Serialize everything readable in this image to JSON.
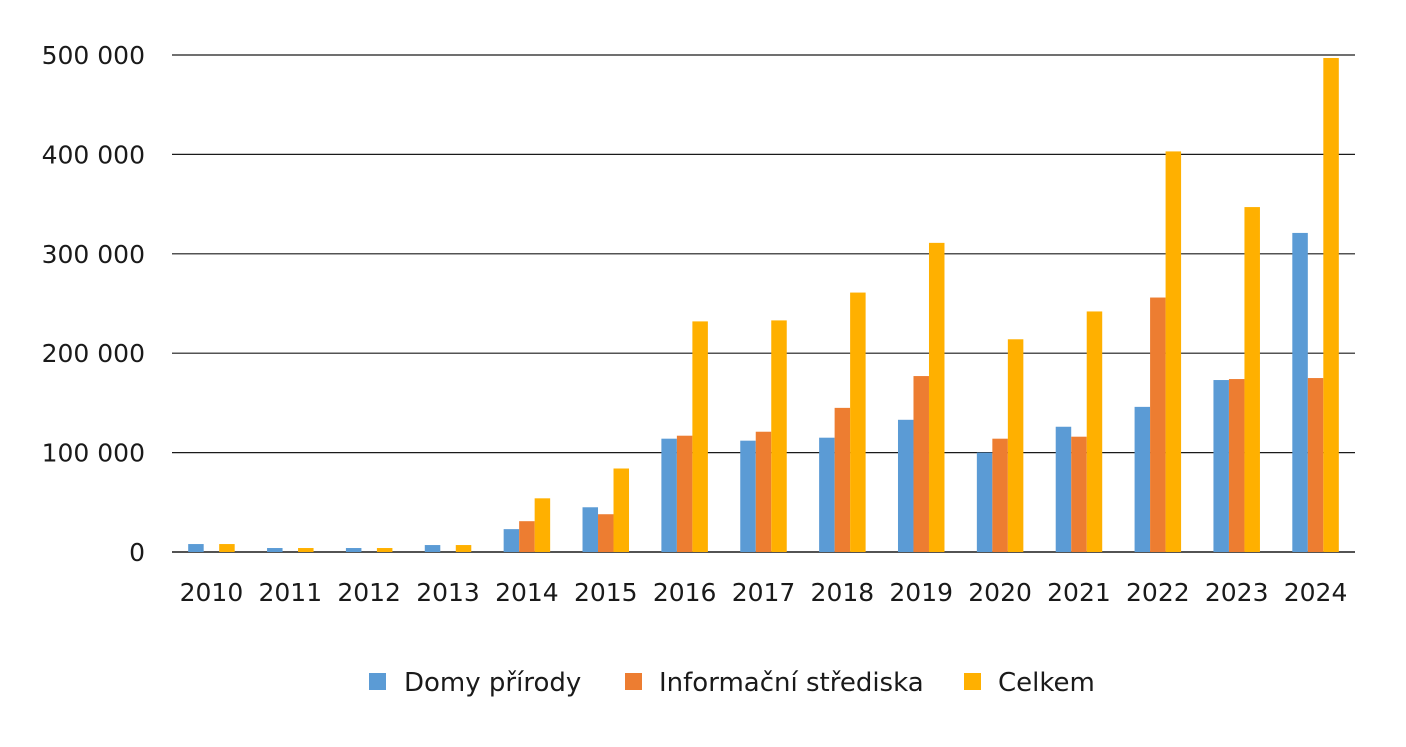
{
  "chart_data": {
    "type": "bar",
    "title": "",
    "xlabel": "",
    "ylabel": "",
    "categories": [
      "2010",
      "2011",
      "2012",
      "2013",
      "2014",
      "2015",
      "2016",
      "2017",
      "2018",
      "2019",
      "2020",
      "2021",
      "2022",
      "2023",
      "2024"
    ],
    "series": [
      {
        "name": "Domy přírody",
        "color": "#5b9bd5",
        "values": [
          8000,
          4000,
          4000,
          7000,
          23000,
          45000,
          114000,
          112000,
          115000,
          133000,
          100000,
          126000,
          146000,
          173000,
          321000
        ]
      },
      {
        "name": "Informační střediska",
        "color": "#ed7d31",
        "values": [
          0,
          0,
          0,
          0,
          31000,
          38000,
          117000,
          121000,
          145000,
          177000,
          114000,
          116000,
          256000,
          174000,
          175000
        ]
      },
      {
        "name": "Celkem",
        "color": "#ffb000",
        "values": [
          8000,
          4000,
          4000,
          7000,
          54000,
          84000,
          232000,
          233000,
          261000,
          311000,
          214000,
          242000,
          403000,
          347000,
          497000
        ]
      }
    ],
    "ylim": [
      0,
      500000
    ],
    "yticks": [
      0,
      100000,
      200000,
      300000,
      400000,
      500000
    ],
    "ytick_labels": [
      "0",
      "100 000",
      "200 000",
      "300 000",
      "400 000",
      "500 000"
    ],
    "grid": true,
    "legend_position": "bottom"
  }
}
